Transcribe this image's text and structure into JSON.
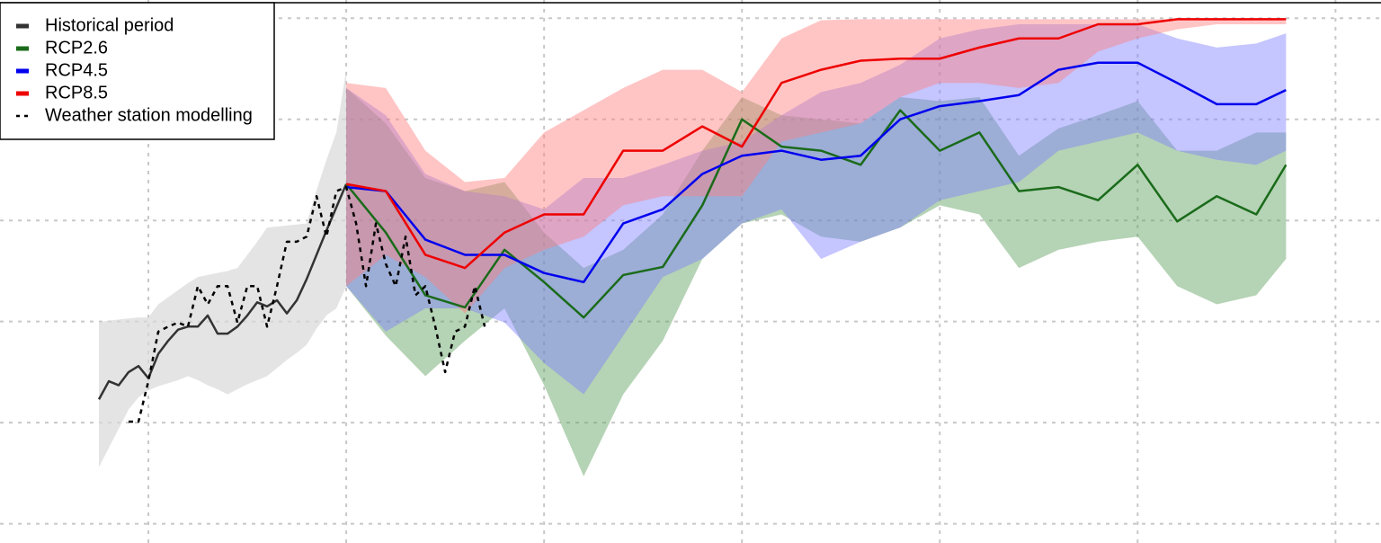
{
  "chart_data": {
    "type": "line",
    "xlim": [
      -7.5,
      62.3
    ],
    "ylim": [
      -1.9,
      51.8
    ],
    "xticks": [
      0,
      10,
      20,
      30,
      40,
      50,
      60
    ],
    "yticks": [
      0,
      10,
      20,
      30,
      40,
      50
    ],
    "grid": true,
    "legend": "upper left",
    "series": [
      {
        "name": "Historical period",
        "color": "#333333",
        "band_color": "#d9d9d9",
        "x": [
          -2.5,
          -2,
          -1.5,
          -1,
          -0.5,
          0,
          0.5,
          1,
          1.5,
          2,
          2.5,
          3,
          3.5,
          4,
          4.5,
          5,
          5.5,
          6,
          6.5,
          7,
          7.5,
          8,
          8.5,
          9,
          9.5,
          10
        ],
        "values": [
          12.3,
          14.1,
          13.7,
          15.0,
          15.6,
          14.4,
          16.8,
          18.1,
          19.2,
          19.5,
          19.5,
          20.6,
          18.8,
          18.8,
          19.5,
          20.6,
          21.9,
          21.5,
          22.1,
          20.8,
          22.1,
          24.2,
          26.6,
          29.0,
          31.3,
          33.6
        ],
        "upper": [
          19.9,
          20.1,
          20.2,
          20.3,
          20.4,
          20.4,
          21.7,
          22.4,
          23.1,
          23.8,
          24.4,
          24.6,
          24.8,
          25.0,
          25.3,
          26.6,
          27.9,
          29.3,
          29.4,
          29.5,
          29.6,
          29.7,
          33.0,
          36.0,
          38.7,
          44.9
        ],
        "lower": [
          5.6,
          7.5,
          9.4,
          11.3,
          12.5,
          13.2,
          13.6,
          13.9,
          14.2,
          14.6,
          14.2,
          13.7,
          13.3,
          12.8,
          13.3,
          13.8,
          14.2,
          14.6,
          15.4,
          16.2,
          16.9,
          17.7,
          19.3,
          20.6,
          21.3,
          23.5
        ]
      },
      {
        "name": "RCP2.6",
        "color": "#1a6b1a",
        "band_color": "#5a9e5a",
        "x": [
          10,
          12,
          14,
          16,
          18,
          20,
          22,
          24,
          26,
          28,
          30,
          32,
          34,
          36,
          38,
          40,
          42,
          44,
          46,
          48,
          50,
          52,
          54,
          56,
          57.5
        ],
        "values": [
          33.6,
          28.8,
          22.6,
          21.4,
          27.1,
          23.9,
          20.4,
          24.6,
          25.4,
          31.5,
          40.0,
          37.3,
          36.9,
          35.5,
          40.9,
          36.9,
          38.7,
          32.9,
          33.3,
          32.0,
          35.5,
          29.9,
          32.4,
          30.6,
          35.5
        ],
        "upper": [
          43.1,
          39.6,
          34.2,
          32.9,
          33.8,
          28.8,
          25.3,
          27.1,
          30.6,
          36.9,
          42.2,
          40.4,
          40.0,
          39.6,
          42.2,
          41.8,
          42.2,
          36.4,
          39.1,
          40.4,
          41.8,
          36.9,
          36.9,
          38.7,
          38.7
        ],
        "lower": [
          23.5,
          18.6,
          14.6,
          18.1,
          21.3,
          13.7,
          4.7,
          12.8,
          18.1,
          26.2,
          29.7,
          30.6,
          28.4,
          27.9,
          29.3,
          31.5,
          30.6,
          25.3,
          27.1,
          27.9,
          28.4,
          23.5,
          21.7,
          22.6,
          26.2
        ]
      },
      {
        "name": "RCP4.5",
        "color": "#0000ee",
        "band_color": "#7f7fff",
        "x": [
          10,
          12,
          14,
          16,
          18,
          20,
          22,
          24,
          26,
          28,
          30,
          32,
          34,
          36,
          38,
          40,
          42,
          44,
          46,
          48,
          50,
          52,
          54,
          56,
          57.5
        ],
        "values": [
          33.3,
          32.9,
          28.1,
          26.6,
          26.6,
          24.8,
          23.9,
          29.7,
          31.1,
          34.6,
          36.4,
          36.9,
          36.0,
          36.4,
          40.0,
          41.3,
          41.8,
          42.4,
          44.9,
          45.6,
          45.6,
          43.6,
          41.5,
          41.5,
          42.9
        ],
        "upper": [
          43.1,
          40.4,
          34.6,
          32.9,
          32.4,
          31.1,
          34.2,
          34.2,
          35.5,
          36.9,
          37.8,
          40.4,
          42.7,
          43.6,
          45.4,
          48.0,
          48.9,
          49.4,
          49.4,
          49.4,
          49.4,
          48.0,
          47.1,
          47.5,
          48.5
        ],
        "lower": [
          23.5,
          19.0,
          21.3,
          21.3,
          19.9,
          15.9,
          12.8,
          18.6,
          24.4,
          26.2,
          29.7,
          31.1,
          26.2,
          27.9,
          29.3,
          32.0,
          32.9,
          33.8,
          36.9,
          37.8,
          38.7,
          36.9,
          36.0,
          35.5,
          36.9
        ]
      },
      {
        "name": "RCP8.5",
        "color": "#ee0000",
        "band_color": "#ff7f7f",
        "x": [
          10,
          12,
          14,
          16,
          18,
          20,
          22,
          24,
          26,
          28,
          30,
          32,
          34,
          36,
          38,
          40,
          42,
          44,
          46,
          48,
          50,
          52,
          54,
          56,
          57.5
        ],
        "values": [
          33.6,
          32.9,
          26.6,
          25.3,
          28.8,
          30.6,
          30.6,
          36.9,
          36.9,
          39.3,
          37.3,
          43.6,
          44.9,
          45.8,
          46.0,
          46.0,
          47.1,
          48.0,
          48.0,
          49.4,
          49.4,
          49.9,
          49.9,
          49.9,
          49.9
        ],
        "upper": [
          43.6,
          43.1,
          36.9,
          33.8,
          34.2,
          38.7,
          40.9,
          43.1,
          44.9,
          44.9,
          42.7,
          48.0,
          49.8,
          49.9,
          49.9,
          49.9,
          49.9,
          49.9,
          49.9,
          49.9,
          49.9,
          49.9,
          49.9,
          49.9,
          49.9
        ],
        "lower": [
          23.5,
          26.6,
          24.4,
          20.8,
          25.3,
          27.1,
          28.4,
          31.5,
          32.4,
          32.4,
          32.4,
          37.8,
          38.7,
          39.6,
          42.2,
          43.6,
          43.6,
          43.1,
          43.6,
          46.7,
          48.0,
          48.9,
          49.4,
          49.4,
          49.4
        ]
      },
      {
        "name": "Weather station modelling",
        "color": "#000000",
        "dashed": true,
        "x": [
          -1,
          -0.5,
          0,
          0.5,
          1,
          1.5,
          2,
          2.5,
          3,
          3.5,
          4,
          4.5,
          5,
          5.5,
          6,
          6.5,
          7,
          7.5,
          8,
          8.5,
          9,
          9.5,
          10,
          10.5,
          11,
          11.5,
          12,
          12.5,
          13,
          13.5,
          14,
          14.5,
          15,
          15.5,
          16,
          16.5,
          17
        ],
        "values": [
          10.1,
          10.1,
          14.1,
          19.0,
          19.5,
          19.9,
          19.5,
          23.5,
          21.7,
          23.5,
          23.5,
          19.9,
          23.5,
          23.5,
          19.5,
          23.5,
          27.9,
          27.9,
          28.4,
          32.4,
          28.4,
          32.9,
          33.3,
          29.7,
          23.5,
          29.7,
          25.7,
          23.5,
          28.4,
          22.6,
          23.5,
          19.5,
          15.0,
          19.0,
          19.5,
          23.5,
          19.5
        ]
      }
    ]
  }
}
